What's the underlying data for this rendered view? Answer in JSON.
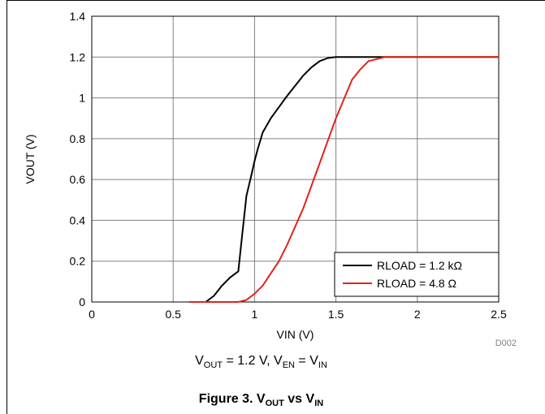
{
  "chart_data": {
    "type": "line",
    "xlabel": "VIN (V)",
    "ylabel": "VOUT (V)",
    "xlim": [
      0,
      2.5
    ],
    "ylim": [
      0,
      1.4
    ],
    "x_ticks": [
      0,
      0.5,
      1,
      1.5,
      2,
      2.5
    ],
    "x_tick_labels": [
      "0",
      "0.5",
      "1",
      "1.5",
      "2",
      "2.5"
    ],
    "y_ticks": [
      0,
      0.2,
      0.4,
      0.6,
      0.8,
      1,
      1.2,
      1.4
    ],
    "y_tick_labels": [
      "0",
      "0.2",
      "0.4",
      "0.6",
      "0.8",
      "1",
      "1.2",
      "1.4"
    ],
    "grid": true,
    "legend_position": "bottom-right",
    "series": [
      {
        "name": "RLOAD = 1.2 kΩ",
        "color": "#000000",
        "x": [
          0.6,
          0.7,
          0.75,
          0.8,
          0.85,
          0.9,
          0.92,
          0.95,
          0.98,
          1.0,
          1.02,
          1.05,
          1.1,
          1.2,
          1.3,
          1.35,
          1.4,
          1.45,
          1.5,
          1.6,
          1.8,
          2.5
        ],
        "y": [
          0.0,
          0.0,
          0.03,
          0.08,
          0.12,
          0.15,
          0.3,
          0.52,
          0.62,
          0.69,
          0.75,
          0.83,
          0.9,
          1.01,
          1.11,
          1.15,
          1.18,
          1.195,
          1.2,
          1.2,
          1.2,
          1.2
        ]
      },
      {
        "name": "RLOAD = 4.8 Ω",
        "color": "#e3221b",
        "x": [
          0.6,
          0.7,
          0.8,
          0.9,
          0.95,
          1.0,
          1.05,
          1.1,
          1.15,
          1.2,
          1.3,
          1.4,
          1.5,
          1.6,
          1.65,
          1.7,
          1.8,
          1.9,
          2.5
        ],
        "y": [
          0.0,
          0.0,
          0.0,
          0.0,
          0.01,
          0.04,
          0.08,
          0.14,
          0.2,
          0.28,
          0.46,
          0.68,
          0.9,
          1.09,
          1.14,
          1.18,
          1.2,
          1.2,
          1.2
        ]
      }
    ]
  },
  "figure_id": "D002",
  "condition": {
    "v1": "V",
    "v1_sub": "OUT",
    "eq1": " = 1.2 V, ",
    "v2": "V",
    "v2_sub": "EN",
    "eq2": " = ",
    "v3": "V",
    "v3_sub": "IN"
  },
  "caption": {
    "prefix": "Figure 3. ",
    "v1": "V",
    "v1_sub": "OUT",
    "mid": " vs ",
    "v2": "V",
    "v2_sub": "IN"
  }
}
